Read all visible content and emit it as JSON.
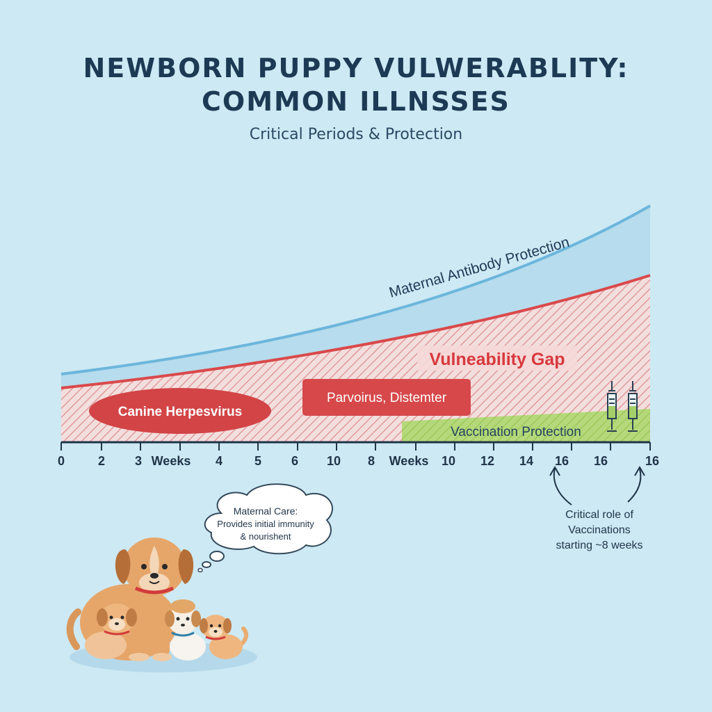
{
  "title_line1": "NEWBORN PUPPY VULWERABLITY:",
  "title_line2": "COMMON ILLNSSES",
  "subtitle": "Critical Periods & Protection",
  "labels": {
    "maternal_antibody": "Maternal Antibody Protection",
    "vulnerability_gap": "Vulneability Gap",
    "herpesvirus": "Canine Herpesvirus",
    "parvo_distemper": "Parvoirus, Distemter",
    "vaccination_protection": "Vaccination Protection"
  },
  "axis_ticks": [
    "0",
    "2",
    "3",
    "Weeks",
    "4",
    "5",
    "6",
    "10",
    "8",
    "Weeks",
    "10",
    "12",
    "14",
    "16",
    "16",
    "16"
  ],
  "critical_note": [
    "Critical role of",
    "Vaccinations",
    "starting ~8 weeks"
  ],
  "maternal_care_bubble": [
    "Maternal Care:",
    "Provides initial immunity",
    "& nourishent"
  ],
  "colors": {
    "background": "#cde9f4",
    "antibody_line": "#6cb6dc",
    "vulnerability_line": "#d9494b",
    "herpes_badge": "#d24446",
    "vaccination_band": "#a6cf66",
    "title": "#1d3a55"
  }
}
